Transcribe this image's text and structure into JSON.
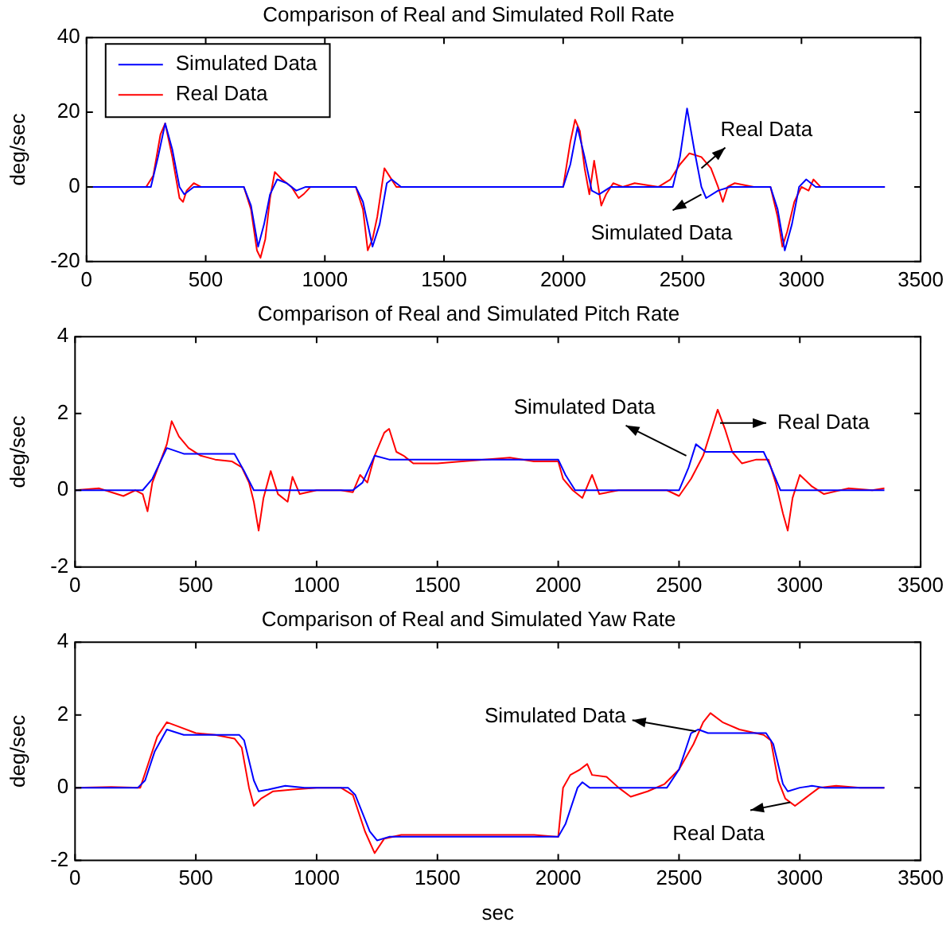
{
  "chart_data": [
    {
      "type": "line",
      "title": "Comparison of Real and Simulated Roll Rate",
      "ylabel": "deg/sec",
      "xlim": [
        0,
        3500
      ],
      "xticks": [
        0,
        500,
        1000,
        1500,
        2000,
        2500,
        3000,
        3500
      ],
      "ylim": [
        -20,
        40
      ],
      "yticks": [
        -20,
        0,
        20,
        40
      ],
      "grid": false,
      "legend": "top left",
      "series": [
        {
          "name": "Simulated Data",
          "color": "#0000ff",
          "x": [
            0,
            270,
            300,
            330,
            360,
            390,
            410,
            450,
            660,
            690,
            720,
            745,
            770,
            800,
            840,
            880,
            920,
            1130,
            1160,
            1200,
            1230,
            1260,
            1280,
            1320,
            2000,
            2030,
            2060,
            2090,
            2120,
            2150,
            2200,
            2460,
            2490,
            2520,
            2550,
            2580,
            2600,
            2650,
            2700,
            2870,
            2900,
            2930,
            2960,
            2990,
            3020,
            3060,
            3350
          ],
          "values": [
            0,
            0,
            8,
            17,
            10,
            0,
            -2,
            0,
            0,
            -5,
            -16,
            -10,
            -2,
            2,
            1,
            -1,
            0,
            0,
            -4,
            -16,
            -10,
            1,
            2,
            0,
            0,
            6,
            16,
            8,
            -1,
            -2,
            0,
            0,
            8,
            21,
            10,
            0,
            -3,
            -1,
            0,
            0,
            -6,
            -17,
            -10,
            0,
            2,
            0,
            0
          ]
        },
        {
          "name": "Real Data",
          "color": "#ff0000",
          "x": [
            0,
            250,
            280,
            310,
            330,
            360,
            390,
            405,
            420,
            450,
            480,
            660,
            690,
            715,
            730,
            750,
            770,
            790,
            820,
            860,
            890,
            910,
            940,
            1130,
            1160,
            1180,
            1200,
            1220,
            1250,
            1270,
            1300,
            2000,
            2030,
            2050,
            2070,
            2090,
            2110,
            2130,
            2150,
            2160,
            2180,
            2210,
            2250,
            2300,
            2400,
            2450,
            2490,
            2530,
            2580,
            2620,
            2650,
            2670,
            2690,
            2720,
            2800,
            2870,
            2900,
            2920,
            2940,
            2970,
            3000,
            3030,
            3050,
            3080,
            3350
          ],
          "values": [
            0,
            0,
            3,
            14,
            17,
            8,
            -3,
            -4,
            -1,
            1,
            0,
            0,
            -6,
            -17,
            -19,
            -14,
            -3,
            4,
            2,
            0,
            -3,
            -2,
            0,
            0,
            -6,
            -17,
            -14,
            -8,
            5,
            3,
            0,
            0,
            12,
            18,
            15,
            5,
            -2,
            7,
            -1,
            -5,
            -2,
            1,
            0,
            1,
            0,
            2,
            6,
            9,
            8,
            5,
            0,
            -4,
            0,
            1,
            0,
            0,
            -8,
            -16,
            -12,
            -4,
            0,
            -1,
            2,
            0,
            0
          ]
        }
      ],
      "annotations": [
        {
          "text": "Real Data",
          "x": 2580,
          "y": 5
        },
        {
          "text": "Simulated Data",
          "x": 2580,
          "y": -2
        }
      ]
    },
    {
      "type": "line",
      "title": "Comparison of Real and Simulated Pitch Rate",
      "ylabel": "deg/sec",
      "xlim": [
        0,
        3500
      ],
      "xticks": [
        0,
        500,
        1000,
        1500,
        2000,
        2500,
        3000,
        3500
      ],
      "ylim": [
        -2,
        4
      ],
      "yticks": [
        -2,
        0,
        2,
        4
      ],
      "grid": false,
      "series": [
        {
          "color": "#0000ff",
          "x": [
            0,
            280,
            320,
            380,
            450,
            660,
            700,
            740,
            1150,
            1190,
            1240,
            1300,
            2000,
            2030,
            2070,
            2500,
            2540,
            2570,
            2610,
            2850,
            2880,
            2920,
            3350
          ],
          "values": [
            0,
            0,
            0.3,
            1.1,
            0.95,
            0.95,
            0.5,
            0,
            0,
            0.2,
            0.9,
            0.8,
            0.8,
            0.4,
            0,
            0,
            0.6,
            1.2,
            1,
            1,
            0.6,
            0,
            0
          ]
        },
        {
          "color": "#ff0000",
          "x": [
            0,
            100,
            150,
            200,
            250,
            280,
            300,
            320,
            350,
            380,
            400,
            430,
            470,
            520,
            580,
            650,
            690,
            720,
            740,
            760,
            780,
            810,
            840,
            880,
            900,
            930,
            1000,
            1100,
            1150,
            1180,
            1210,
            1240,
            1280,
            1300,
            1330,
            1360,
            1400,
            1500,
            1600,
            1800,
            1900,
            2000,
            2020,
            2060,
            2100,
            2140,
            2170,
            2250,
            2350,
            2450,
            2500,
            2550,
            2600,
            2640,
            2660,
            2690,
            2720,
            2760,
            2820,
            2870,
            2900,
            2930,
            2950,
            2970,
            3000,
            3050,
            3100,
            3200,
            3300,
            3350
          ],
          "values": [
            0,
            0.05,
            -0.05,
            -0.15,
            0,
            -0.1,
            -0.55,
            0.2,
            0.7,
            1.2,
            1.8,
            1.4,
            1.1,
            0.9,
            0.8,
            0.75,
            0.6,
            0.2,
            -0.3,
            -1.05,
            -0.2,
            0.5,
            -0.1,
            -0.3,
            0.35,
            -0.1,
            0,
            0,
            -0.05,
            0.4,
            0.2,
            0.9,
            1.5,
            1.6,
            1,
            0.9,
            0.7,
            0.7,
            0.75,
            0.85,
            0.75,
            0.75,
            0.3,
            0,
            -0.2,
            0.4,
            -0.1,
            0,
            0,
            0,
            -0.15,
            0.3,
            0.9,
            1.7,
            2.1,
            1.6,
            1,
            0.7,
            0.8,
            0.8,
            0.2,
            -0.6,
            -1.05,
            -0.2,
            0.4,
            0.1,
            -0.1,
            0.05,
            0,
            0.05
          ]
        }
      ],
      "annotations": [
        {
          "text": "Simulated Data",
          "x": 2530,
          "y": 0.9
        },
        {
          "text": "Real Data",
          "x": 2670,
          "y": 1.75
        }
      ]
    },
    {
      "type": "line",
      "title": "Comparison of Real and Simulated Yaw Rate",
      "xlabel": "sec",
      "ylabel": "deg/sec",
      "xlim": [
        0,
        3500
      ],
      "xticks": [
        0,
        500,
        1000,
        1500,
        2000,
        2500,
        3000,
        3500
      ],
      "ylim": [
        -2,
        4
      ],
      "yticks": [
        -2,
        0,
        2,
        4
      ],
      "grid": false,
      "series": [
        {
          "color": "#0000ff",
          "x": [
            0,
            260,
            290,
            330,
            380,
            450,
            680,
            700,
            740,
            760,
            800,
            870,
            950,
            1130,
            1160,
            1220,
            1250,
            1300,
            2000,
            2030,
            2080,
            2100,
            2130,
            2450,
            2500,
            2550,
            2580,
            2620,
            2860,
            2890,
            2930,
            2950,
            3000,
            3050,
            3100,
            3350
          ],
          "values": [
            0,
            0,
            0.2,
            1,
            1.6,
            1.45,
            1.45,
            1.3,
            0.2,
            -0.1,
            -0.05,
            0.05,
            0,
            0,
            -0.2,
            -1.2,
            -1.45,
            -1.35,
            -1.35,
            -1,
            0,
            0.15,
            0,
            0,
            0.5,
            1.5,
            1.6,
            1.5,
            1.5,
            1.2,
            0.1,
            -0.1,
            0,
            0.05,
            0,
            0
          ]
        },
        {
          "color": "#ff0000",
          "x": [
            0,
            150,
            270,
            300,
            340,
            380,
            420,
            500,
            580,
            660,
            690,
            720,
            740,
            770,
            820,
            900,
            1000,
            1100,
            1150,
            1200,
            1240,
            1280,
            1350,
            1500,
            1700,
            1900,
            2000,
            2020,
            2050,
            2090,
            2120,
            2140,
            2200,
            2250,
            2300,
            2370,
            2440,
            2500,
            2560,
            2600,
            2630,
            2680,
            2750,
            2850,
            2880,
            2910,
            2940,
            2980,
            3020,
            3080,
            3150,
            3250,
            3350
          ],
          "values": [
            0,
            0.02,
            0,
            0.6,
            1.4,
            1.8,
            1.7,
            1.5,
            1.45,
            1.35,
            1.1,
            0,
            -0.5,
            -0.3,
            -0.1,
            -0.05,
            0,
            0,
            -0.2,
            -1.2,
            -1.8,
            -1.4,
            -1.3,
            -1.3,
            -1.3,
            -1.3,
            -1.35,
            0,
            0.35,
            0.5,
            0.65,
            0.35,
            0.3,
            0,
            -0.25,
            -0.1,
            0.1,
            0.5,
            1.2,
            1.8,
            2.05,
            1.8,
            1.6,
            1.45,
            1.3,
            0.2,
            -0.3,
            -0.5,
            -0.3,
            0,
            0.05,
            0,
            0
          ]
        }
      ],
      "annotations": [
        {
          "text": "Simulated Data",
          "x": 2570,
          "y": 1.55
        },
        {
          "text": "Real Data",
          "x": 2960,
          "y": -0.4
        }
      ]
    }
  ]
}
